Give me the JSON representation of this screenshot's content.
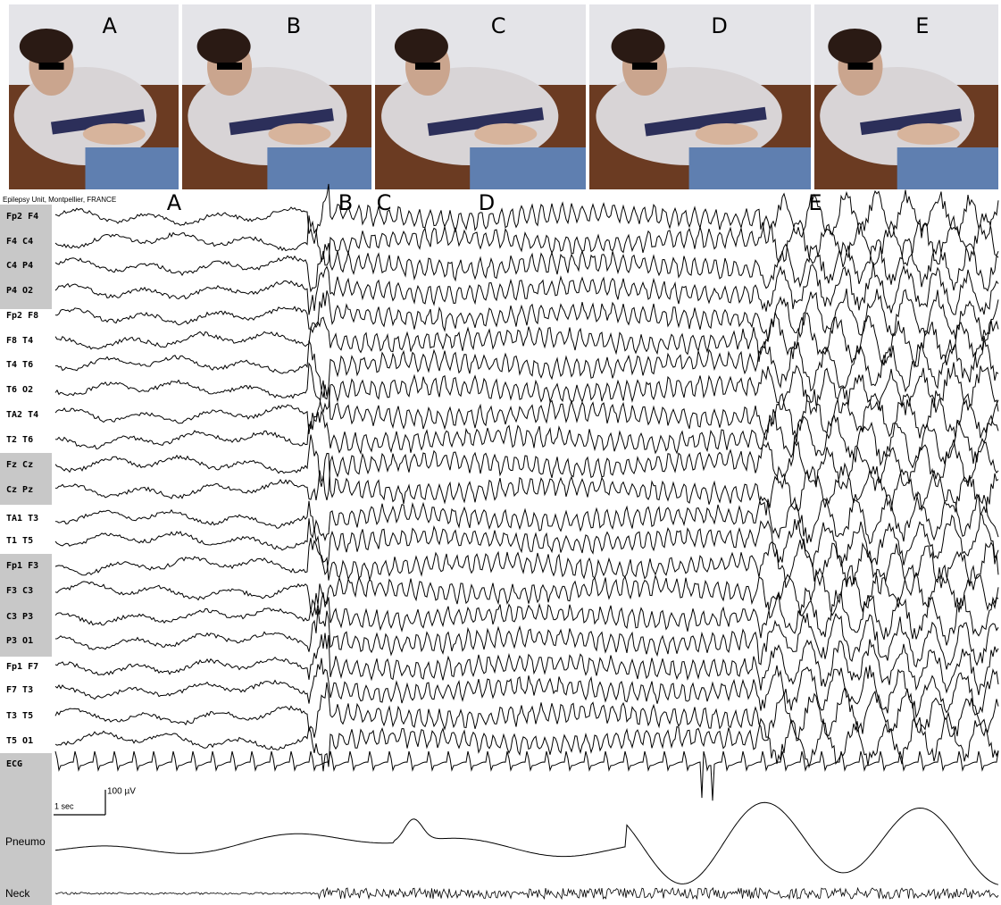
{
  "photos": {
    "labels": [
      "A",
      "B",
      "C",
      "D",
      "E"
    ]
  },
  "eeg": {
    "header": "Epilepsy Unit, Montpellier, FRANCE",
    "event_markers": [
      "A",
      "B",
      "C",
      "D",
      "E"
    ],
    "channels": [
      "Fp2 F4",
      "F4 C4",
      "C4 P4",
      "P4 O2",
      "Fp2 F8",
      "F8 T4",
      "T4 T6",
      "T6 O2",
      "TA2 T4",
      "T2 T6",
      "Fz Cz",
      "Cz Pz",
      "TA1 T3",
      "T1 T5",
      "Fp1 F3",
      "F3 C3",
      "C3 P3",
      "P3 O1",
      "Fp1 F7",
      "F7 T3",
      "T3 T5",
      "T5 O1",
      "ECG"
    ],
    "scale": {
      "amplitude": "100 µV",
      "time": "1 sec"
    },
    "pneumo_label": "Pneumo",
    "neck_label": "Neck"
  }
}
